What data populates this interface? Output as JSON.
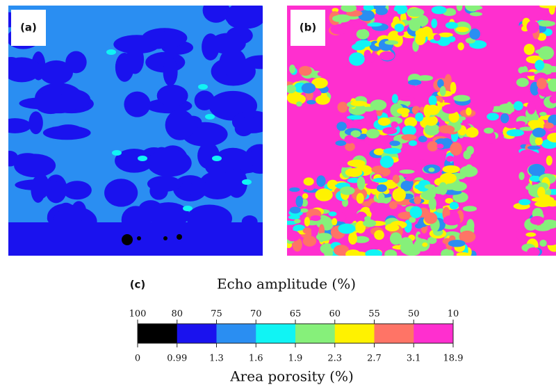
{
  "panels": [
    {
      "label": "(a)"
    },
    {
      "label": "(b)"
    }
  ],
  "colorbar": {
    "label": "(c)",
    "title": "Echo amplitude (%)",
    "subtitle": "Area porosity (%)",
    "top_labels": [
      100,
      80,
      75,
      70,
      65,
      60,
      55,
      50,
      10
    ],
    "bottom_labels": [
      0,
      0.99,
      1.3,
      1.6,
      1.9,
      2.3,
      2.7,
      3.1,
      18.9
    ],
    "colors": [
      "#000000",
      "#1a12ee",
      "#2a8ef2",
      "#10f4f4",
      "#86f07a",
      "#fff200",
      "#ff7466",
      "#ff2fcf"
    ]
  }
}
